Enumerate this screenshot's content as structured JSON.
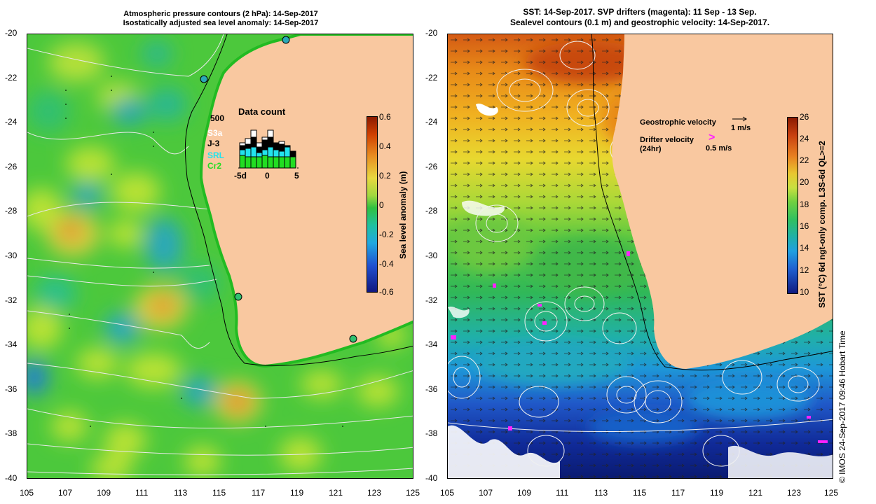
{
  "left_title_line1": "Atmospheric pressure contours (2 hPa): 14-Sep-2017",
  "left_title_line2": "Isostatically adjusted sea level anomaly: 14-Sep-2017",
  "right_title_line1": "SST: 14-Sep-2017. SVP drifters (magenta): 11 Sep - 13 Sep.",
  "right_title_line2": "Sealevel contours (0.1 m) and geostrophic velocity: 14-Sep-2017.",
  "lat_labels": [
    "-20",
    "-22",
    "-24",
    "-26",
    "-28",
    "-30",
    "-32",
    "-34",
    "-36",
    "-38",
    "-40"
  ],
  "lon_labels": [
    "105",
    "107",
    "109",
    "111",
    "113",
    "115",
    "117",
    "119",
    "121",
    "123",
    "125"
  ],
  "left_colorbar": {
    "label": "Sea level anomaly (m)",
    "ticks": [
      "0.6",
      "0.4",
      "0.2",
      "0",
      "-0.2",
      "-0.4",
      "-0.6"
    ]
  },
  "right_colorbar": {
    "label": "SST (°C) 6d ngt-only comp. L3S-6d QL>=2",
    "ticks": [
      "26",
      "24",
      "22",
      "20",
      "18",
      "16",
      "14",
      "12",
      "10"
    ]
  },
  "data_count": {
    "title": "Data count",
    "ymax_label": "500",
    "x_labels": [
      "-5d",
      "0",
      "5"
    ],
    "legend": [
      {
        "name": "S3a",
        "color": "#ffffff"
      },
      {
        "name": "J-3",
        "color": "#000000"
      },
      {
        "name": "SRL",
        "color": "#22e3ee"
      },
      {
        "name": "Cr2",
        "color": "#22dd22"
      }
    ]
  },
  "geostrophic_label": "Geostrophic velocity",
  "geostrophic_scale": "1 m/s",
  "drifter_label_line1": "Drifter velocity",
  "drifter_label_line2": "(24hr)",
  "drifter_scale": "0.5 m/s",
  "drifter_glyph": ">",
  "credit": "© IMOS 24-Sep-2017 09:46 Hobart Time",
  "colors": {
    "land": "#f9c8a0",
    "magenta": "#ff22ff"
  }
}
